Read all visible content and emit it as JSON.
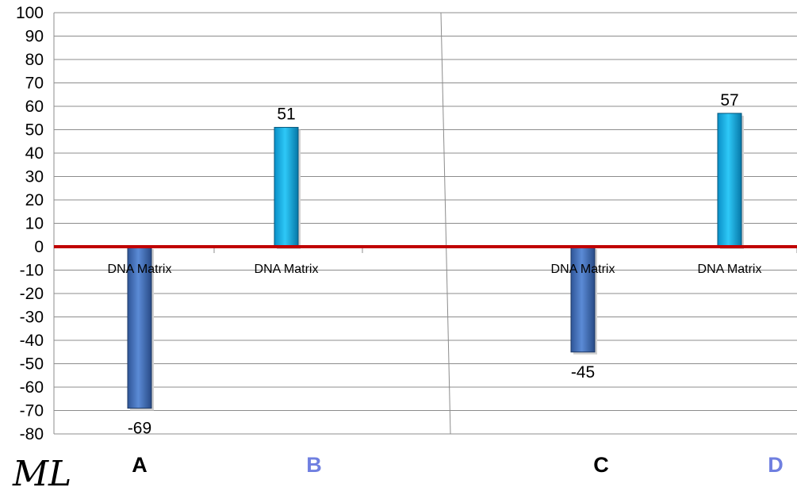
{
  "chart_data": {
    "type": "bar",
    "ylim": [
      -80,
      100
    ],
    "ytick_step": 10,
    "grid": true,
    "baseline_color": "#c00000",
    "bars": [
      {
        "category": "DNA Matrix",
        "value": -69,
        "label": "-69",
        "color": "#4f81bd"
      },
      {
        "category": "DNA Matrix",
        "value": 51,
        "label": "51",
        "color": "#00b0f0"
      },
      {
        "category": "DNA Matrix",
        "value": -45,
        "label": "-45",
        "color": "#4f81bd"
      },
      {
        "category": "DNA Matrix",
        "value": 57,
        "label": "57",
        "color": "#00b0f0"
      }
    ],
    "group_labels": [
      {
        "text": "A",
        "color": "#000000"
      },
      {
        "text": "B",
        "color": "#6f7fe0"
      },
      {
        "text": "C",
        "color": "#000000"
      },
      {
        "text": "D",
        "color": "#6f7fe0"
      }
    ]
  },
  "signature": "ML"
}
